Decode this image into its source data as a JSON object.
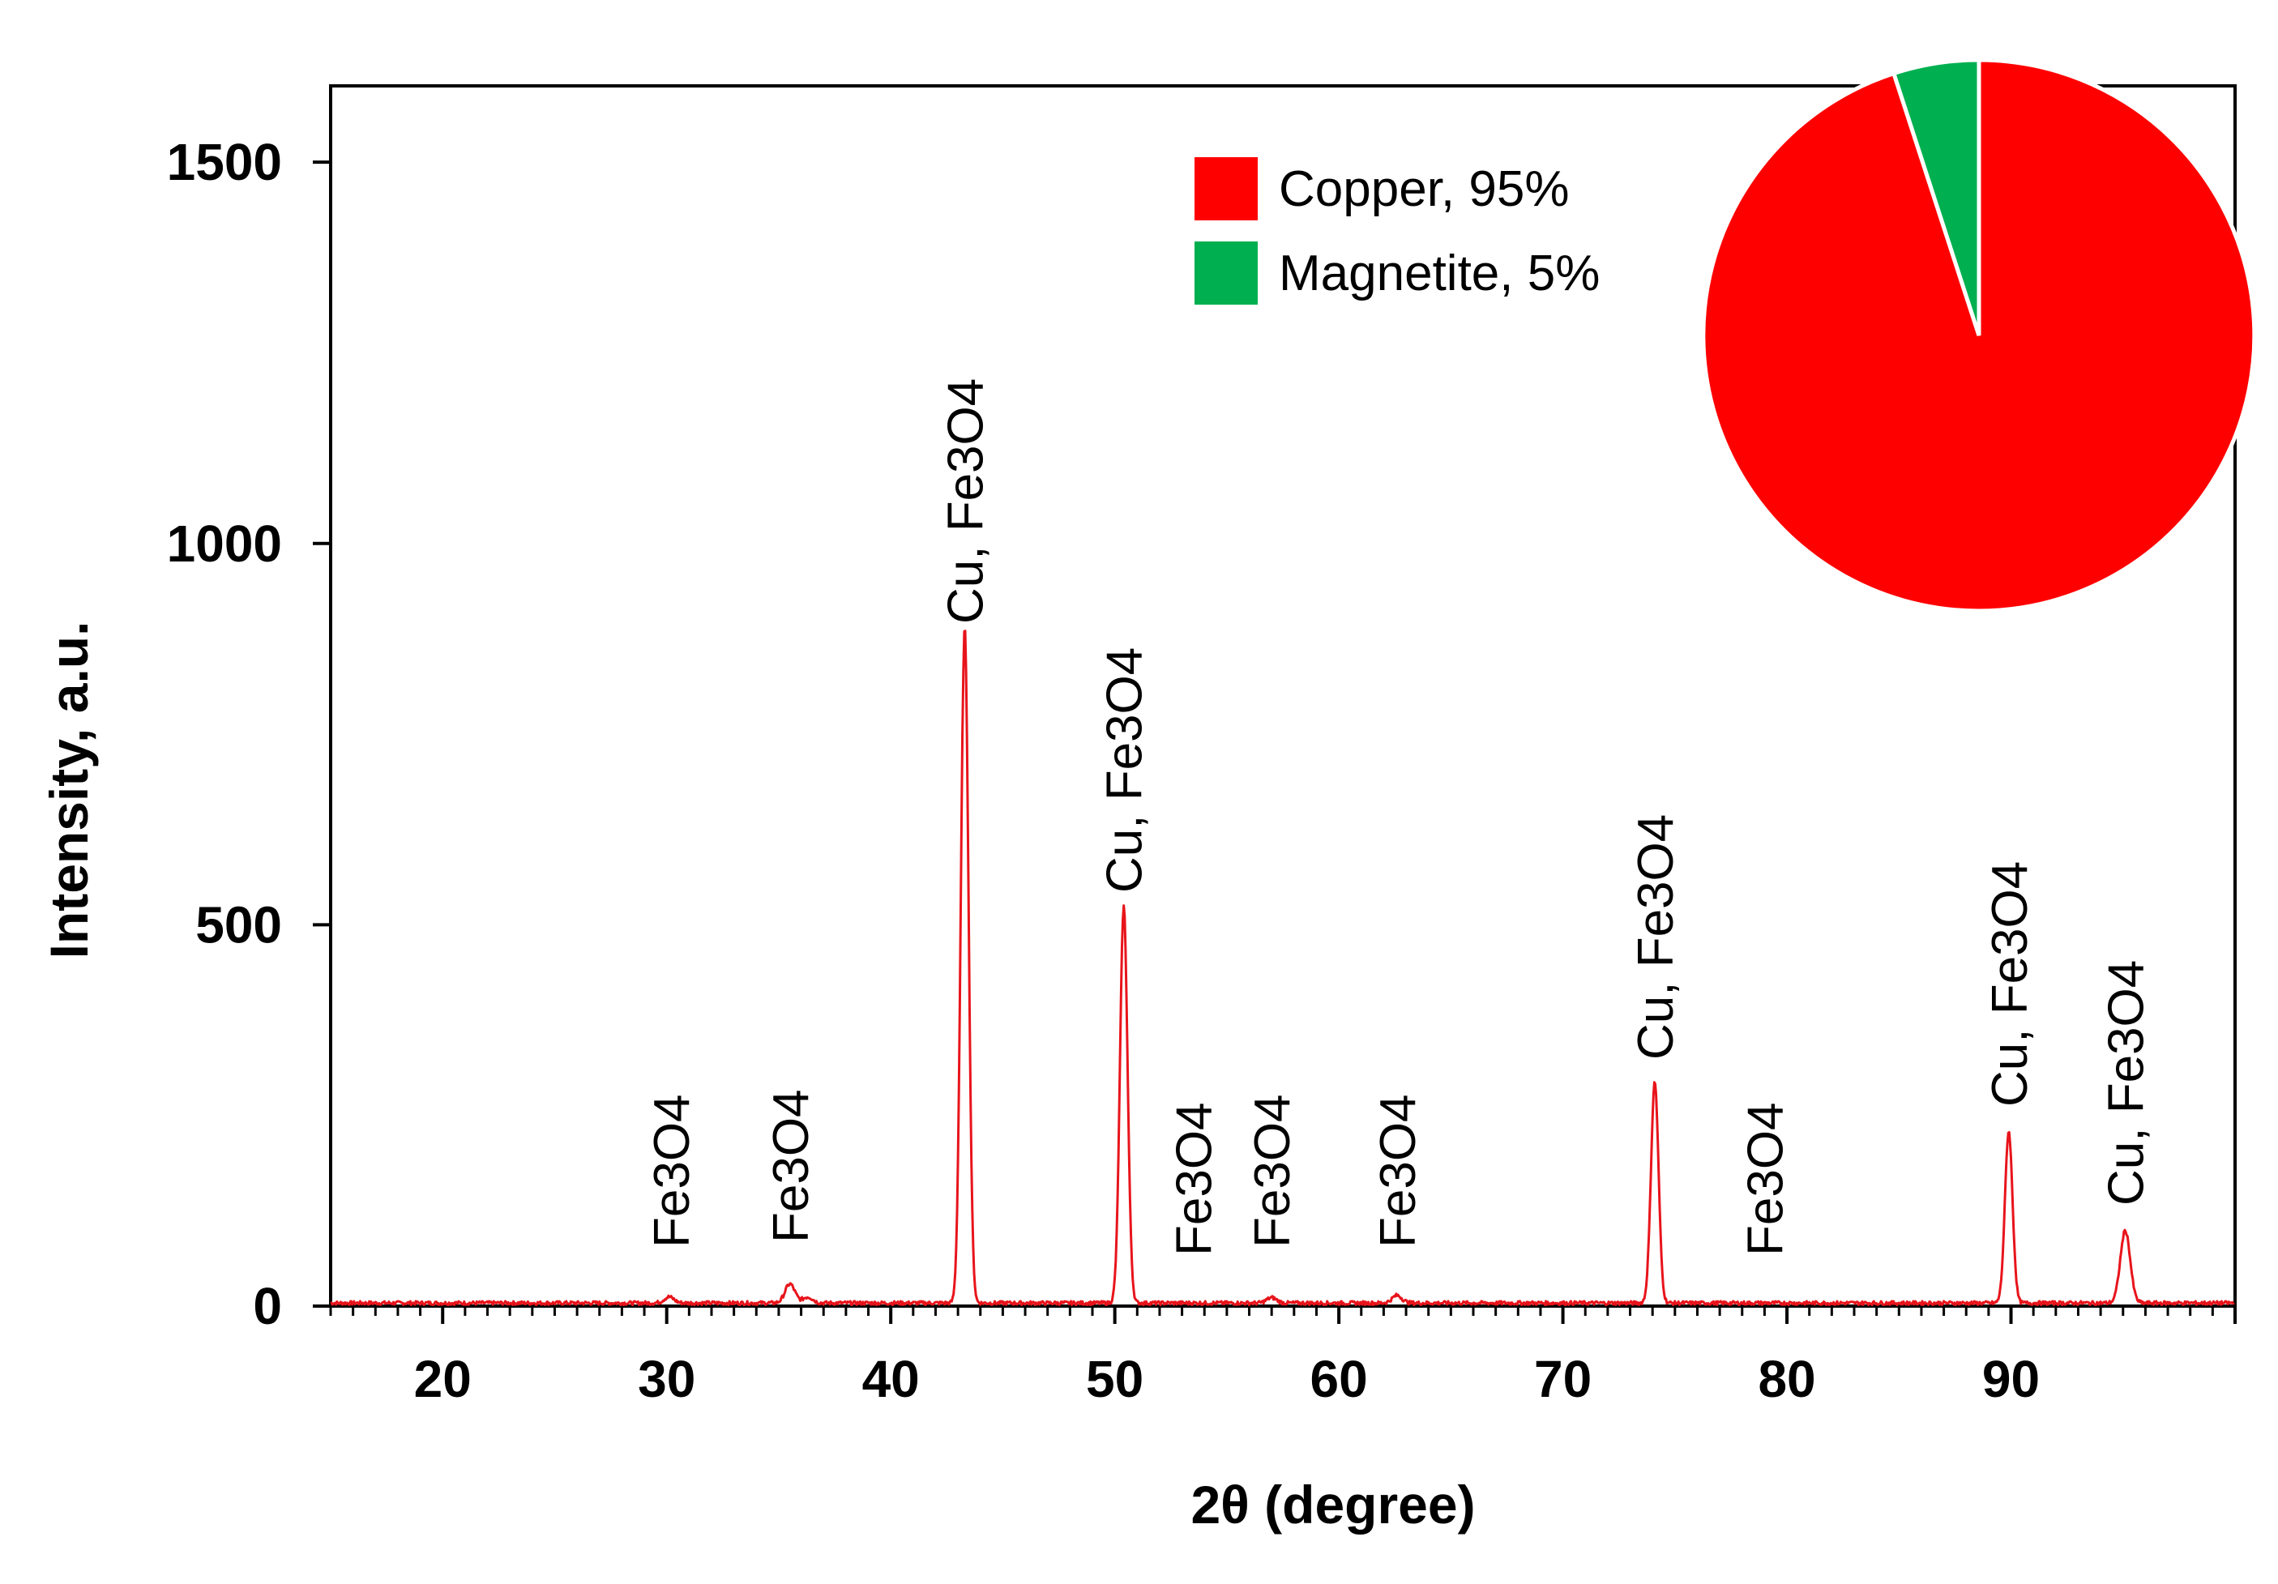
{
  "chart_data": [
    {
      "type": "line",
      "xlabel": "2θ (degree)",
      "ylabel": "Intensity, a.u.",
      "xlim": [
        15,
        100
      ],
      "ylim": [
        0,
        1600
      ],
      "xticks": [
        20,
        30,
        40,
        50,
        60,
        70,
        80,
        90
      ],
      "yticks": [
        0,
        500,
        1000,
        1500
      ],
      "grid": false,
      "series": [
        {
          "color": "#e8141b",
          "peaks": [
            {
              "x": 30.1,
              "y": 8
            },
            {
              "x": 35.5,
              "y": 25
            },
            {
              "x": 36.3,
              "y": 8
            },
            {
              "x": 43.3,
              "y": 885
            },
            {
              "x": 50.4,
              "y": 520
            },
            {
              "x": 57.0,
              "y": 7
            },
            {
              "x": 62.6,
              "y": 10
            },
            {
              "x": 74.1,
              "y": 290
            },
            {
              "x": 89.9,
              "y": 225
            },
            {
              "x": 95.1,
              "y": 95
            }
          ]
        }
      ],
      "annotations": [
        {
          "text": "Fe3O4",
          "x": 30.2
        },
        {
          "text": "Fe3O4",
          "x": 35.5
        },
        {
          "text": "Cu, Fe3O4",
          "x": 43.3
        },
        {
          "text": "Cu, Fe3O4",
          "x": 50.4
        },
        {
          "text": "Fe3O4",
          "x": 53.5
        },
        {
          "text": "Fe3O4",
          "x": 57.0
        },
        {
          "text": "Fe3O4",
          "x": 62.6
        },
        {
          "text": "Cu, Fe3O4",
          "x": 74.1
        },
        {
          "text": "Fe3O4",
          "x": 79.0
        },
        {
          "text": "Cu, Fe3O4",
          "x": 89.9
        },
        {
          "text": "Cu, Fe3O4",
          "x": 95.1
        }
      ]
    },
    {
      "type": "pie",
      "labels": [
        "Copper, 95%",
        "Magnetite, 5%"
      ],
      "values": [
        95,
        5
      ],
      "colors": [
        "#ff0000",
        "#00b050"
      ],
      "legend_position": "top-center"
    }
  ]
}
